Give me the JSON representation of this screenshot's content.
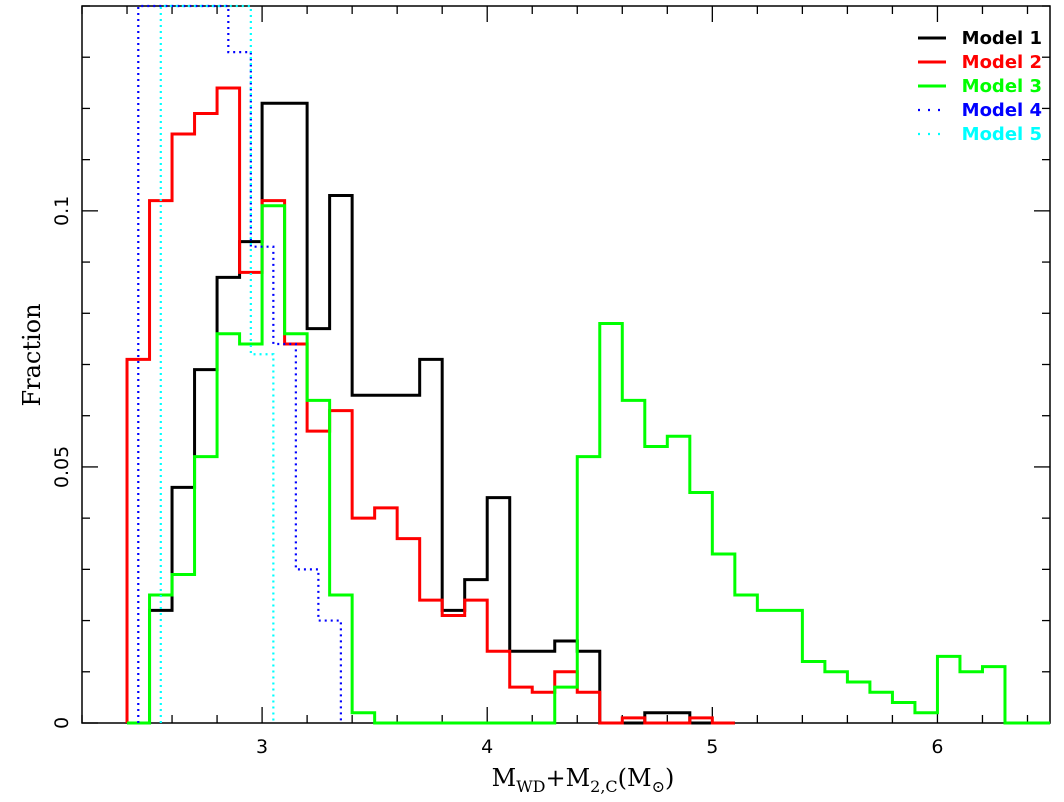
{
  "chart_data": {
    "type": "step-histogram",
    "title": "",
    "xlabel": {
      "main": "M",
      "sub1": "WD",
      "mid": "+M",
      "sub2": "2,C",
      "open": "(M",
      "sun": "⊙",
      "close": ")"
    },
    "ylabel": "Fraction",
    "xlim": [
      2.2,
      6.5
    ],
    "ylim": [
      0,
      0.14
    ],
    "x_ticks_major": [
      3,
      4,
      5,
      6
    ],
    "x_tick_labels": [
      "3",
      "4",
      "5",
      "6"
    ],
    "y_ticks_major": [
      0,
      0.05,
      0.1
    ],
    "y_tick_labels": [
      "0",
      "0.05",
      "0.1"
    ],
    "x_minor_step": 0.2,
    "y_minor_step": 0.01,
    "legend_position": "top-right",
    "grid": false,
    "series": [
      {
        "name": "Model 1",
        "color": "#000000",
        "style": "solid",
        "edges": [
          2.4,
          2.5,
          2.6,
          2.7,
          2.8,
          2.9,
          3.0,
          3.1,
          3.2,
          3.3,
          3.4,
          3.5,
          3.6,
          3.7,
          3.8,
          3.9,
          4.0,
          4.1,
          4.2,
          4.3,
          4.4,
          4.5,
          4.6,
          4.7,
          4.8,
          4.9,
          5.0,
          5.1
        ],
        "values": [
          0.0,
          0.022,
          0.046,
          0.069,
          0.087,
          0.094,
          0.121,
          0.121,
          0.077,
          0.103,
          0.064,
          0.064,
          0.064,
          0.071,
          0.022,
          0.028,
          0.044,
          0.014,
          0.014,
          0.016,
          0.014,
          0.0,
          0.0,
          0.002,
          0.002,
          0.0,
          0.0
        ]
      },
      {
        "name": "Model 2",
        "color": "#ff0000",
        "style": "solid",
        "edges": [
          2.4,
          2.5,
          2.6,
          2.7,
          2.8,
          2.9,
          3.0,
          3.1,
          3.2,
          3.3,
          3.4,
          3.5,
          3.6,
          3.7,
          3.8,
          3.9,
          4.0,
          4.1,
          4.2,
          4.3,
          4.4,
          4.5,
          4.6,
          4.7,
          4.8,
          4.9,
          5.0,
          5.1
        ],
        "values": [
          0.071,
          0.102,
          0.115,
          0.119,
          0.124,
          0.088,
          0.102,
          0.074,
          0.057,
          0.061,
          0.04,
          0.042,
          0.036,
          0.024,
          0.021,
          0.024,
          0.014,
          0.007,
          0.006,
          0.01,
          0.006,
          0.0,
          0.001,
          0.0,
          0.0,
          0.001,
          0.0
        ]
      },
      {
        "name": "Model 3",
        "color": "#00ff00",
        "style": "solid",
        "edges": [
          2.4,
          2.5,
          2.6,
          2.7,
          2.8,
          2.9,
          3.0,
          3.1,
          3.2,
          3.3,
          3.4,
          3.5,
          3.6,
          3.7,
          3.8,
          3.9,
          4.0,
          4.1,
          4.2,
          4.3,
          4.4,
          4.5,
          4.6,
          4.7,
          4.8,
          4.9,
          5.0,
          5.1,
          5.2,
          5.3,
          5.4,
          5.5,
          5.6,
          5.7,
          5.8,
          5.9,
          6.0,
          6.1,
          6.2,
          6.3,
          6.4
        ],
        "values": [
          0.0,
          0.025,
          0.029,
          0.052,
          0.076,
          0.074,
          0.101,
          0.076,
          0.063,
          0.025,
          0.002,
          0.0,
          0.0,
          0.0,
          0.0,
          0.0,
          0.0,
          0.0,
          0.0,
          0.007,
          0.052,
          0.078,
          0.063,
          0.054,
          0.056,
          0.045,
          0.033,
          0.025,
          0.022,
          0.022,
          0.012,
          0.01,
          0.008,
          0.006,
          0.004,
          0.002,
          0.013,
          0.01,
          0.011,
          0.0
        ]
      },
      {
        "name": "Model 4",
        "color": "#0000ff",
        "style": "dotted",
        "edges": [
          2.45,
          2.55,
          2.65,
          2.75,
          2.85,
          2.95,
          3.05,
          3.15,
          3.25,
          3.35
        ],
        "values": [
          0.14,
          0.14,
          0.14,
          0.14,
          0.131,
          0.093,
          0.074,
          0.03,
          0.02,
          0.0
        ]
      },
      {
        "name": "Model 5",
        "color": "#00ffff",
        "style": "dotted",
        "edges": [
          2.55,
          2.65,
          2.75,
          2.85,
          2.95,
          3.05
        ],
        "values": [
          0.14,
          0.14,
          0.14,
          0.14,
          0.072,
          0.0
        ]
      }
    ]
  }
}
